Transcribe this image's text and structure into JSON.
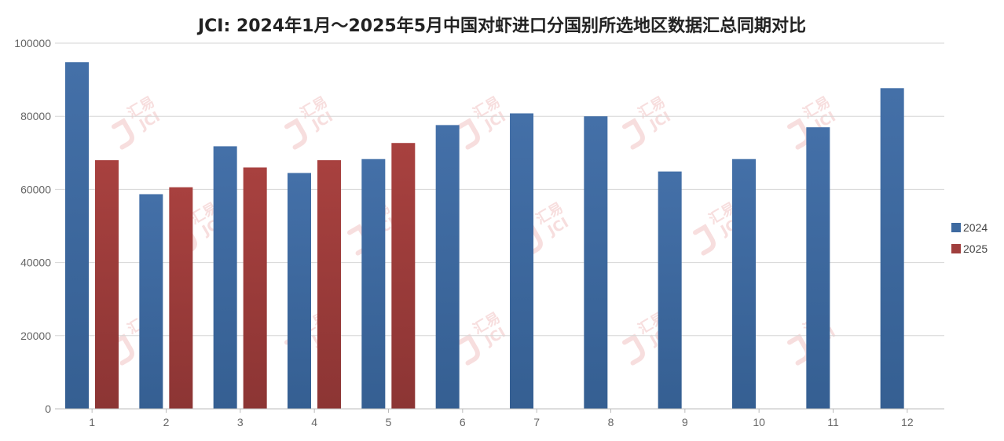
{
  "chart_data": {
    "type": "bar",
    "title": "JCI: 2024年1月～2025年5月中国对虾进口分国别所选地区数据汇总同期对比",
    "xlabel": "",
    "ylabel": "",
    "categories": [
      "1",
      "2",
      "3",
      "4",
      "5",
      "6",
      "7",
      "8",
      "9",
      "10",
      "11",
      "12"
    ],
    "ylim": [
      0,
      100000
    ],
    "yticks": [
      0,
      20000,
      40000,
      60000,
      80000,
      100000
    ],
    "grid": true,
    "legend_position": "right",
    "series": [
      {
        "name": "2024",
        "color": "#3e6aa0",
        "values": [
          94800,
          58700,
          71800,
          64500,
          68300,
          77600,
          80800,
          80000,
          64900,
          68300,
          77000,
          87700
        ]
      },
      {
        "name": "2025",
        "color": "#a03e3d",
        "values": [
          68000,
          60600,
          66000,
          68000,
          72700,
          null,
          null,
          null,
          null,
          null,
          null,
          null
        ]
      }
    ]
  },
  "watermark": {
    "text": "汇易",
    "latin": "JCI",
    "color": "#f2c4c4"
  }
}
